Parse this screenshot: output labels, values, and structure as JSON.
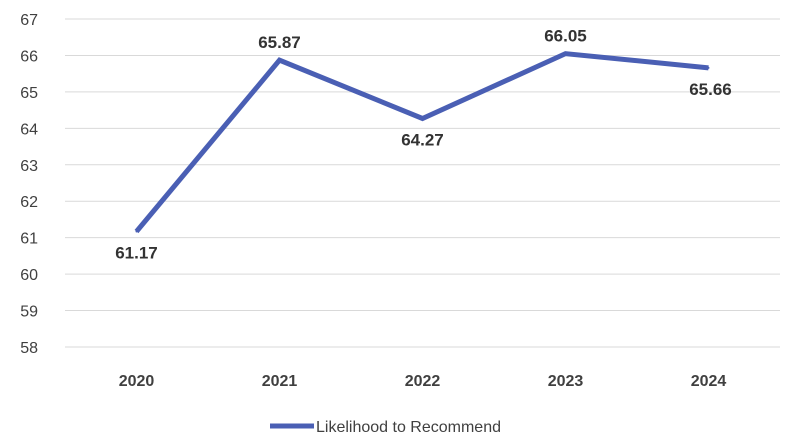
{
  "chart_data": {
    "type": "line",
    "categories": [
      "2020",
      "2021",
      "2022",
      "2023",
      "2024"
    ],
    "series": [
      {
        "name": "Likelihood to Recommend",
        "values": [
          61.17,
          65.87,
          64.27,
          66.05,
          65.66
        ],
        "labels": [
          "61.17",
          "65.87",
          "64.27",
          "66.05",
          "65.66"
        ],
        "color": "#4a5fb4"
      }
    ],
    "ylim": [
      58,
      67
    ],
    "yticks": [
      "58",
      "59",
      "60",
      "61",
      "62",
      "63",
      "64",
      "65",
      "66",
      "67"
    ],
    "grid": true,
    "legend_position": "bottom"
  }
}
